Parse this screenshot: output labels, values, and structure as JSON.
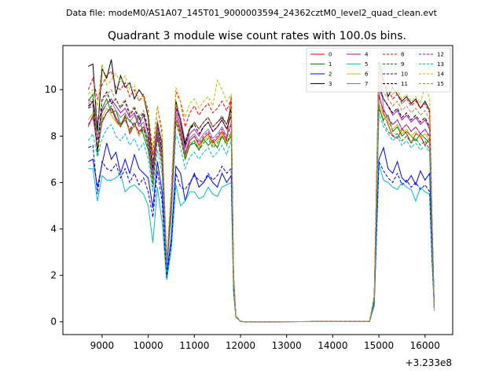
{
  "header": {
    "data_file_label": "Data file: modeM0/AS1A07_145T01_9000003594_24362cztM0_level2_quad_clean.evt"
  },
  "chart_data": {
    "type": "line",
    "title": "Quadrant 3 module wise count rates with 100.0s bins.",
    "xlabel": "",
    "ylabel": "",
    "x_offset_label": "+3.233e8",
    "xlim": [
      8150,
      16600
    ],
    "ylim": [
      -0.55,
      11.9
    ],
    "x_ticks": [
      9000,
      10000,
      11000,
      12000,
      13000,
      14000,
      15000,
      16000
    ],
    "x_tick_labels": [
      "9000",
      "10000",
      "11000",
      "12000",
      "13000",
      "14000",
      "15000",
      "16000"
    ],
    "y_ticks": [
      0,
      2,
      4,
      6,
      8,
      10
    ],
    "y_tick_labels": [
      "0",
      "2",
      "4",
      "6",
      "8",
      "10"
    ],
    "grid": false,
    "legend_placement": "top-right",
    "x": [
      8700,
      8800,
      8900,
      9000,
      9100,
      9200,
      9300,
      9400,
      9500,
      9600,
      9700,
      9800,
      9900,
      10000,
      10100,
      10200,
      10300,
      10400,
      10500,
      10600,
      10700,
      10800,
      10900,
      11000,
      11100,
      11200,
      11300,
      11400,
      11500,
      11600,
      11700,
      11800,
      11850,
      11900,
      12000,
      12100,
      14800,
      14900,
      15000,
      15100,
      15200,
      15300,
      15400,
      15500,
      15600,
      15700,
      15800,
      15900,
      16000,
      16100,
      16150,
      16200
    ],
    "series": [
      {
        "name": "0",
        "color": "#ff0000",
        "dash": "solid",
        "values": [
          8.4,
          8.9,
          7.5,
          8.6,
          9.0,
          9.2,
          8.7,
          8.4,
          8.9,
          8.1,
          8.5,
          8.2,
          8.4,
          7.9,
          6.2,
          8.0,
          7.1,
          2.2,
          5.0,
          9.0,
          8.2,
          7.2,
          7.8,
          8.0,
          7.6,
          7.9,
          8.1,
          7.7,
          7.9,
          8.2,
          7.8,
          9.7,
          1.8,
          0.22,
          0.02,
          0.0,
          0.02,
          1.0,
          9.8,
          9.0,
          8.5,
          8.0,
          7.9,
          8.3,
          8.1,
          7.7,
          8.1,
          8.0,
          7.6,
          7.9,
          4.0,
          0.6
        ]
      },
      {
        "name": "1",
        "color": "#008000",
        "dash": "solid",
        "values": [
          9.5,
          9.8,
          7.9,
          9.2,
          9.6,
          9.0,
          9.1,
          8.5,
          8.8,
          8.7,
          8.4,
          8.9,
          8.0,
          7.4,
          6.0,
          8.2,
          6.8,
          2.3,
          4.9,
          8.7,
          8.0,
          7.0,
          7.6,
          7.7,
          7.4,
          7.9,
          7.6,
          7.8,
          7.5,
          8.0,
          7.7,
          8.0,
          1.8,
          0.22,
          0.02,
          0.0,
          0.02,
          1.0,
          9.2,
          8.7,
          8.9,
          8.2,
          8.4,
          8.0,
          8.2,
          8.0,
          7.8,
          8.1,
          7.9,
          7.7,
          4.0,
          0.6
        ]
      },
      {
        "name": "2",
        "color": "#0000ff",
        "dash": "solid",
        "values": [
          6.9,
          7.0,
          5.8,
          6.8,
          7.7,
          7.0,
          7.3,
          6.4,
          7.0,
          6.4,
          7.2,
          6.6,
          6.4,
          6.2,
          4.9,
          6.9,
          5.6,
          2.0,
          3.6,
          6.7,
          6.4,
          5.2,
          5.9,
          6.4,
          5.8,
          6.0,
          6.3,
          6.0,
          5.8,
          6.4,
          6.0,
          6.3,
          1.4,
          0.2,
          0.02,
          0.0,
          0.02,
          0.8,
          7.0,
          7.5,
          6.6,
          6.4,
          6.9,
          6.2,
          6.0,
          6.3,
          5.9,
          6.5,
          6.1,
          6.4,
          3.2,
          0.6
        ]
      },
      {
        "name": "3",
        "color": "#000000",
        "dash": "solid",
        "values": [
          11.0,
          11.1,
          8.2,
          10.9,
          10.5,
          11.3,
          9.8,
          10.6,
          10.1,
          10.3,
          9.6,
          10.0,
          9.7,
          8.8,
          6.8,
          8.6,
          7.7,
          2.5,
          5.2,
          9.5,
          8.7,
          7.7,
          8.3,
          8.6,
          8.3,
          8.6,
          8.8,
          8.4,
          8.6,
          8.8,
          8.5,
          9.2,
          2.0,
          0.25,
          0.02,
          0.0,
          0.02,
          1.1,
          11.2,
          10.4,
          9.7,
          10.1,
          9.8,
          9.5,
          9.7,
          9.4,
          9.6,
          9.2,
          9.5,
          9.1,
          4.5,
          0.7
        ]
      },
      {
        "name": "4",
        "color": "#bf00bf",
        "dash": "solid",
        "values": [
          9.2,
          9.5,
          8.6,
          9.1,
          9.4,
          9.6,
          9.3,
          9.0,
          9.2,
          8.8,
          9.0,
          8.5,
          8.9,
          8.1,
          6.5,
          8.4,
          7.3,
          2.4,
          5.1,
          9.2,
          8.5,
          7.5,
          8.1,
          8.3,
          8.0,
          8.4,
          8.6,
          8.2,
          8.4,
          8.7,
          8.3,
          8.9,
          1.9,
          0.23,
          0.02,
          0.0,
          0.02,
          1.0,
          10.0,
          9.6,
          9.3,
          8.9,
          9.1,
          8.7,
          8.9,
          8.6,
          8.8,
          8.5,
          8.7,
          8.3,
          4.2,
          0.6
        ]
      },
      {
        "name": "5",
        "color": "#00bfbf",
        "dash": "solid",
        "values": [
          6.6,
          6.6,
          5.2,
          6.3,
          6.1,
          6.1,
          6.2,
          6.4,
          5.6,
          5.8,
          5.9,
          5.7,
          5.5,
          5.0,
          3.4,
          5.8,
          4.3,
          1.8,
          3.1,
          5.9,
          5.0,
          5.2,
          5.6,
          5.6,
          5.3,
          5.4,
          5.8,
          5.5,
          5.4,
          5.8,
          5.9,
          6.0,
          1.3,
          0.2,
          0.02,
          0.0,
          0.02,
          0.7,
          6.8,
          6.1,
          6.0,
          5.8,
          5.7,
          6.0,
          5.8,
          5.7,
          5.2,
          5.8,
          5.6,
          5.5,
          2.7,
          0.6
        ]
      },
      {
        "name": "6",
        "color": "#bfbf00",
        "dash": "solid",
        "values": [
          8.7,
          9.0,
          8.0,
          8.8,
          9.2,
          8.9,
          8.6,
          8.4,
          8.7,
          8.2,
          8.5,
          8.0,
          8.3,
          7.6,
          6.1,
          7.9,
          6.9,
          2.3,
          4.8,
          8.7,
          8.0,
          7.1,
          7.7,
          7.8,
          7.5,
          7.8,
          8.0,
          7.6,
          7.8,
          8.1,
          7.7,
          8.2,
          1.8,
          0.22,
          0.02,
          0.0,
          0.02,
          1.0,
          9.4,
          8.9,
          8.6,
          8.3,
          8.5,
          8.1,
          8.3,
          8.0,
          8.2,
          7.9,
          8.1,
          7.8,
          3.9,
          0.6
        ]
      },
      {
        "name": "7",
        "color": "#808080",
        "dash": "solid",
        "values": [
          9.6,
          9.4,
          7.9,
          9.0,
          9.4,
          9.5,
          9.1,
          8.8,
          9.0,
          8.6,
          8.9,
          8.4,
          8.6,
          7.8,
          6.3,
          8.3,
          7.1,
          2.4,
          5.0,
          9.0,
          8.3,
          7.3,
          7.9,
          8.1,
          7.8,
          8.1,
          8.3,
          7.9,
          8.1,
          8.4,
          8.0,
          8.6,
          1.9,
          0.23,
          0.02,
          0.0,
          0.02,
          1.0,
          11.1,
          9.2,
          8.7,
          8.5,
          8.7,
          8.3,
          8.5,
          8.2,
          8.4,
          8.1,
          8.3,
          8.0,
          4.0,
          0.6
        ]
      },
      {
        "name": "8",
        "color": "#ff0000",
        "dash": "dashed",
        "values": [
          10.0,
          10.5,
          9.6,
          10.2,
          10.6,
          10.8,
          10.1,
          10.0,
          10.3,
          9.7,
          10.0,
          9.5,
          9.8,
          9.1,
          7.2,
          9.3,
          8.1,
          2.6,
          5.6,
          9.9,
          9.5,
          8.4,
          9.0,
          9.3,
          8.9,
          9.2,
          9.4,
          9.0,
          9.2,
          9.5,
          9.1,
          9.6,
          2.1,
          0.26,
          0.02,
          0.0,
          0.02,
          1.1,
          10.9,
          10.3,
          10.0,
          9.6,
          9.8,
          9.4,
          9.6,
          9.3,
          9.5,
          9.2,
          9.4,
          9.0,
          4.5,
          0.7
        ]
      },
      {
        "name": "9",
        "color": "#008000",
        "dash": "dashed",
        "values": [
          9.2,
          9.3,
          7.2,
          8.7,
          9.0,
          9.3,
          8.8,
          8.4,
          8.8,
          8.2,
          8.6,
          8.1,
          8.3,
          7.5,
          5.8,
          7.9,
          6.7,
          2.2,
          4.8,
          8.6,
          7.9,
          7.0,
          7.6,
          7.8,
          7.4,
          7.7,
          7.9,
          7.5,
          7.7,
          8.0,
          7.6,
          8.2,
          1.8,
          0.22,
          0.02,
          0.0,
          0.02,
          0.9,
          9.3,
          8.6,
          8.2,
          8.0,
          8.1,
          7.8,
          8.0,
          7.7,
          7.9,
          7.6,
          7.8,
          7.4,
          3.7,
          0.6
        ]
      },
      {
        "name": "10",
        "color": "#0000ff",
        "dash": "dashed",
        "values": [
          7.5,
          7.6,
          5.5,
          6.9,
          6.6,
          6.5,
          6.8,
          6.2,
          6.6,
          6.0,
          6.4,
          5.9,
          6.2,
          5.6,
          4.5,
          6.5,
          5.2,
          1.9,
          3.4,
          6.4,
          5.8,
          5.7,
          6.0,
          6.3,
          6.1,
          6.0,
          6.4,
          6.1,
          6.3,
          6.7,
          6.4,
          6.6,
          1.4,
          0.2,
          0.02,
          0.0,
          0.02,
          0.8,
          6.9,
          6.5,
          6.2,
          6.0,
          6.4,
          5.9,
          6.1,
          5.8,
          6.0,
          5.7,
          5.9,
          5.6,
          2.8,
          0.6
        ]
      },
      {
        "name": "11",
        "color": "#000000",
        "dash": "dashed",
        "values": [
          9.3,
          9.5,
          7.3,
          9.6,
          9.9,
          9.4,
          9.6,
          9.2,
          9.5,
          8.9,
          9.2,
          8.7,
          9.0,
          8.2,
          6.6,
          8.6,
          7.4,
          2.4,
          5.2,
          9.3,
          8.7,
          7.6,
          8.3,
          8.5,
          8.1,
          8.4,
          8.6,
          8.2,
          8.4,
          8.7,
          8.3,
          8.9,
          1.9,
          0.24,
          0.02,
          0.0,
          0.02,
          1.0,
          10.2,
          9.6,
          9.3,
          9.0,
          9.2,
          8.8,
          9.0,
          8.7,
          8.9,
          8.6,
          8.8,
          8.4,
          4.2,
          0.6
        ]
      },
      {
        "name": "12",
        "color": "#bf00bf",
        "dash": "dashed",
        "values": [
          8.5,
          8.8,
          7.8,
          8.6,
          9.0,
          9.2,
          8.8,
          8.5,
          8.7,
          8.3,
          8.6,
          8.1,
          8.4,
          7.7,
          6.2,
          8.0,
          7.0,
          2.3,
          4.9,
          8.8,
          8.1,
          7.2,
          7.8,
          8.0,
          7.7,
          8.0,
          8.2,
          7.8,
          8.0,
          8.3,
          7.9,
          8.5,
          1.8,
          0.22,
          0.02,
          0.0,
          0.02,
          1.0,
          9.7,
          9.1,
          8.8,
          8.5,
          8.7,
          8.3,
          8.5,
          8.2,
          8.4,
          8.1,
          8.3,
          7.9,
          4.0,
          0.6
        ]
      },
      {
        "name": "13",
        "color": "#00bfbf",
        "dash": "dashed",
        "values": [
          7.8,
          8.1,
          7.1,
          7.9,
          8.3,
          8.5,
          8.0,
          7.8,
          8.1,
          7.6,
          7.9,
          7.4,
          7.7,
          7.0,
          5.6,
          7.4,
          6.4,
          2.1,
          4.5,
          8.1,
          7.5,
          6.6,
          7.1,
          7.3,
          7.0,
          7.3,
          7.5,
          7.1,
          7.3,
          7.6,
          7.2,
          7.8,
          1.7,
          0.21,
          0.02,
          0.0,
          0.02,
          0.9,
          9.0,
          8.4,
          8.1,
          7.8,
          8.0,
          7.6,
          7.8,
          7.5,
          7.7,
          7.4,
          7.6,
          7.3,
          3.6,
          0.5
        ]
      },
      {
        "name": "14",
        "color": "#bfbf00",
        "dash": "dashed",
        "values": [
          9.8,
          10.0,
          9.3,
          11.1,
          10.2,
          10.4,
          10.7,
          10.3,
          10.6,
          10.0,
          10.2,
          9.5,
          9.7,
          9.0,
          7.5,
          9.3,
          8.3,
          2.7,
          5.8,
          10.1,
          9.5,
          8.8,
          9.4,
          9.6,
          9.2,
          9.5,
          9.7,
          9.3,
          10.4,
          10.0,
          9.5,
          9.8,
          2.1,
          0.27,
          0.02,
          0.0,
          0.02,
          1.1,
          10.9,
          10.1,
          10.2,
          9.8,
          10.0,
          9.6,
          9.8,
          9.5,
          9.7,
          9.4,
          10.2,
          9.6,
          4.6,
          0.45
        ]
      },
      {
        "name": "15",
        "color": "#bf7f3f",
        "dash": "dashed",
        "values": [
          9.4,
          9.6,
          8.7,
          9.5,
          9.8,
          10.0,
          9.5,
          9.3,
          9.6,
          9.0,
          9.3,
          8.8,
          9.1,
          8.4,
          6.8,
          8.7,
          7.6,
          2.5,
          5.3,
          9.4,
          8.8,
          7.8,
          8.4,
          8.6,
          8.3,
          8.6,
          8.8,
          8.4,
          8.6,
          8.9,
          8.5,
          9.0,
          2.0,
          0.24,
          0.02,
          0.0,
          0.02,
          1.0,
          10.5,
          9.9,
          9.6,
          9.3,
          9.5,
          9.1,
          9.3,
          9.0,
          9.2,
          8.9,
          9.1,
          8.7,
          4.3,
          0.6
        ]
      }
    ]
  }
}
